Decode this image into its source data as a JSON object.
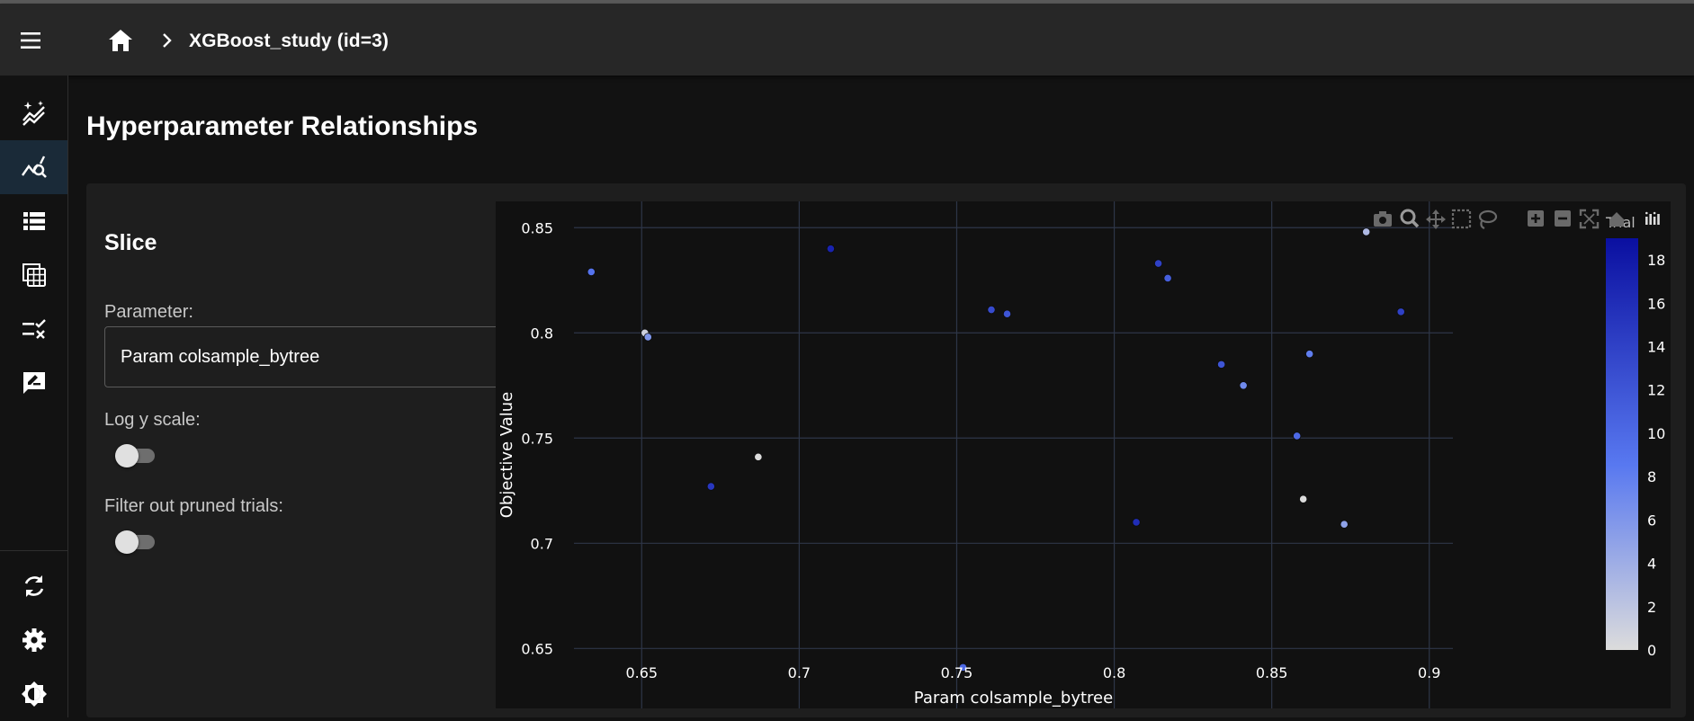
{
  "header": {
    "title": "XGBoost_study (id=3)"
  },
  "sidebar": {
    "items": [
      {
        "icon": "auto-graph-icon"
      },
      {
        "icon": "query-stats-icon",
        "active": true
      },
      {
        "icon": "view-list-icon"
      },
      {
        "icon": "table-icon"
      },
      {
        "icon": "rule-icon"
      },
      {
        "icon": "rate-review-icon"
      }
    ],
    "bottom": [
      {
        "icon": "sync-icon"
      },
      {
        "icon": "settings-icon"
      },
      {
        "icon": "brightness-icon"
      }
    ]
  },
  "page": {
    "title": "Hyperparameter Relationships"
  },
  "slice": {
    "heading": "Slice",
    "parameter_label": "Parameter:",
    "parameter_value": "Param colsample_bytree",
    "log_y_label": "Log y scale:",
    "log_y_on": false,
    "filter_pruned_label": "Filter out pruned trials:",
    "filter_pruned_on": false
  },
  "colors": {
    "accent": "#1a2a38",
    "marker_low": "#dcdcdc",
    "marker_high": "#0a0fa0"
  },
  "chart_data": {
    "type": "scatter",
    "xlabel": "Param colsample_bytree",
    "ylabel": "Objective Value",
    "xlim": [
      0.6285,
      0.9075
    ],
    "ylim": [
      0.6215,
      0.8625
    ],
    "x_ticks": [
      0.65,
      0.7,
      0.75,
      0.8,
      0.85,
      0.9
    ],
    "x_tick_labels": [
      "0.65",
      "0.7",
      "0.75",
      "0.8",
      "0.85",
      "0.9"
    ],
    "y_ticks": [
      0.65,
      0.7,
      0.75,
      0.8,
      0.85
    ],
    "y_tick_labels": [
      "0.65",
      "0.7",
      "0.75",
      "0.8",
      "0.85"
    ],
    "colorbar": {
      "title": "Trial",
      "min": 0,
      "max": 19,
      "ticks": [
        0,
        2,
        4,
        6,
        8,
        10,
        12,
        14,
        16,
        18
      ],
      "tick_labels": [
        "0",
        "2",
        "4",
        "6",
        "8",
        "10",
        "12",
        "14",
        "16",
        "18"
      ]
    },
    "grid": true,
    "points": [
      {
        "x": 0.651,
        "y": 0.8,
        "trial": 1
      },
      {
        "x": 0.687,
        "y": 0.741,
        "trial": 0
      },
      {
        "x": 0.86,
        "y": 0.721,
        "trial": 0
      },
      {
        "x": 0.88,
        "y": 0.848,
        "trial": 3
      },
      {
        "x": 0.873,
        "y": 0.709,
        "trial": 5
      },
      {
        "x": 0.652,
        "y": 0.798,
        "trial": 6
      },
      {
        "x": 0.841,
        "y": 0.775,
        "trial": 7
      },
      {
        "x": 0.862,
        "y": 0.79,
        "trial": 8
      },
      {
        "x": 0.634,
        "y": 0.829,
        "trial": 9
      },
      {
        "x": 0.752,
        "y": 0.641,
        "trial": 10
      },
      {
        "x": 0.858,
        "y": 0.751,
        "trial": 10
      },
      {
        "x": 0.817,
        "y": 0.826,
        "trial": 11
      },
      {
        "x": 0.834,
        "y": 0.785,
        "trial": 12
      },
      {
        "x": 0.766,
        "y": 0.809,
        "trial": 12
      },
      {
        "x": 0.761,
        "y": 0.811,
        "trial": 13
      },
      {
        "x": 0.814,
        "y": 0.833,
        "trial": 14
      },
      {
        "x": 0.891,
        "y": 0.81,
        "trial": 14
      },
      {
        "x": 0.672,
        "y": 0.727,
        "trial": 15
      },
      {
        "x": 0.807,
        "y": 0.71,
        "trial": 16
      },
      {
        "x": 0.71,
        "y": 0.84,
        "trial": 17
      }
    ]
  }
}
